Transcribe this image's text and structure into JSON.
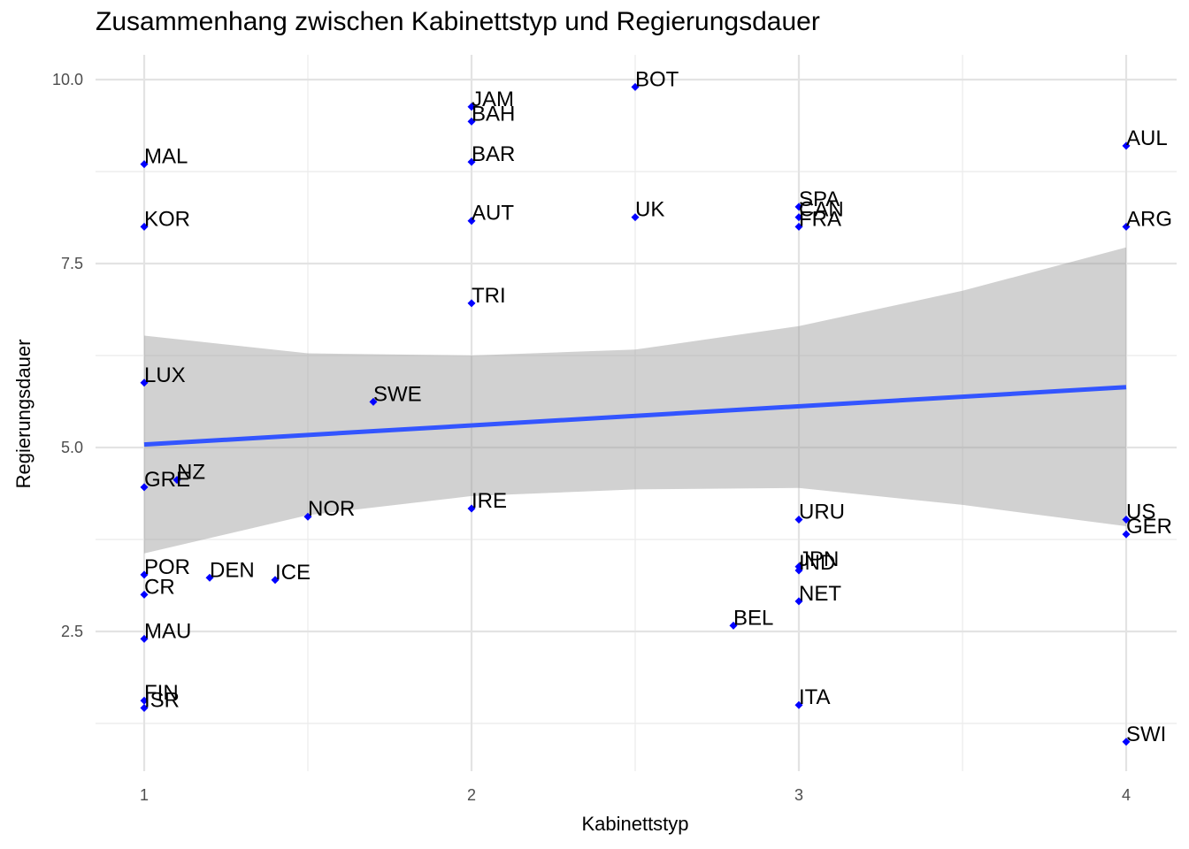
{
  "chart_data": {
    "type": "scatter",
    "title": "Zusammenhang zwischen Kabinettstyp und Regierungsdauer",
    "xlabel": "Kabinettstyp",
    "ylabel": "Regierungsdauer",
    "xlim": [
      0.85,
      4.15
    ],
    "ylim": [
      0.7,
      10.35
    ],
    "x_ticks": [
      1,
      2,
      3,
      4
    ],
    "y_ticks": [
      2.5,
      5.0,
      7.5,
      10.0
    ],
    "y_tick_labels": [
      "2.5",
      "5.0",
      "7.5",
      "10.0"
    ],
    "x_tick_labels": [
      "1",
      "2",
      "3",
      "4"
    ],
    "grid": true,
    "point_color": "#0000ff",
    "points": [
      {
        "label": "MAL",
        "x": 1.0,
        "y": 8.85
      },
      {
        "label": "KOR",
        "x": 1.0,
        "y": 8.0
      },
      {
        "label": "LUX",
        "x": 1.0,
        "y": 5.88
      },
      {
        "label": "GRE",
        "x": 1.0,
        "y": 4.46
      },
      {
        "label": "NZ",
        "x": 1.1,
        "y": 4.56
      },
      {
        "label": "POR",
        "x": 1.0,
        "y": 3.27
      },
      {
        "label": "CR",
        "x": 1.0,
        "y": 3.0
      },
      {
        "label": "MAU",
        "x": 1.0,
        "y": 2.4
      },
      {
        "label": "FIN",
        "x": 1.0,
        "y": 1.56
      },
      {
        "label": "ISR",
        "x": 1.0,
        "y": 1.46
      },
      {
        "label": "DEN",
        "x": 1.2,
        "y": 3.23
      },
      {
        "label": "ICE",
        "x": 1.4,
        "y": 3.2
      },
      {
        "label": "NOR",
        "x": 1.5,
        "y": 4.06
      },
      {
        "label": "SWE",
        "x": 1.7,
        "y": 5.62
      },
      {
        "label": "JAM",
        "x": 2.0,
        "y": 9.63
      },
      {
        "label": "BAH",
        "x": 2.0,
        "y": 9.43
      },
      {
        "label": "BAR",
        "x": 2.0,
        "y": 8.88
      },
      {
        "label": "AUT",
        "x": 2.0,
        "y": 8.08
      },
      {
        "label": "TRI",
        "x": 2.0,
        "y": 6.96
      },
      {
        "label": "IRE",
        "x": 2.0,
        "y": 4.17
      },
      {
        "label": "BOT",
        "x": 2.5,
        "y": 9.9
      },
      {
        "label": "UK",
        "x": 2.5,
        "y": 8.13
      },
      {
        "label": "SPA",
        "x": 3.0,
        "y": 8.27
      },
      {
        "label": "CAN",
        "x": 3.0,
        "y": 8.13
      },
      {
        "label": "FRA",
        "x": 3.0,
        "y": 8.0
      },
      {
        "label": "URU",
        "x": 3.0,
        "y": 4.02
      },
      {
        "label": "JPN",
        "x": 3.0,
        "y": 3.38
      },
      {
        "label": "IND",
        "x": 3.0,
        "y": 3.33
      },
      {
        "label": "NET",
        "x": 3.0,
        "y": 2.91
      },
      {
        "label": "ITA",
        "x": 3.0,
        "y": 1.5
      },
      {
        "label": "BEL",
        "x": 2.8,
        "y": 2.58
      },
      {
        "label": "AUL",
        "x": 4.0,
        "y": 9.1
      },
      {
        "label": "ARG",
        "x": 4.0,
        "y": 8.0
      },
      {
        "label": "US",
        "x": 4.0,
        "y": 4.02
      },
      {
        "label": "GER",
        "x": 4.0,
        "y": 3.82
      },
      {
        "label": "SWI",
        "x": 4.0,
        "y": 1.0
      }
    ],
    "trend_line": {
      "color": "#3355ff",
      "x": [
        1,
        4
      ],
      "y": [
        5.04,
        5.82
      ]
    },
    "confidence_band": {
      "color": "#999999",
      "x": [
        1.0,
        1.5,
        2.0,
        2.5,
        3.0,
        3.5,
        4.0
      ],
      "upper": [
        6.52,
        6.28,
        6.25,
        6.33,
        6.65,
        7.13,
        7.72
      ],
      "lower": [
        3.56,
        4.08,
        4.34,
        4.43,
        4.45,
        4.22,
        3.93
      ]
    }
  }
}
